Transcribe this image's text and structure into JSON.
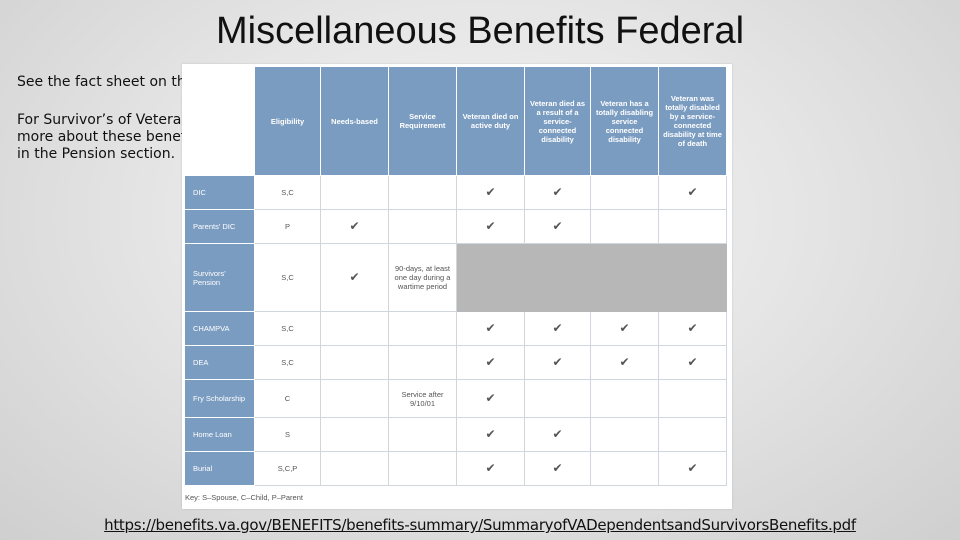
{
  "slide": {
    "title": "Miscellaneous Benefits Federal",
    "side_text_1": "See the fact sheet on the table.",
    "side_text_2_lines": [
      "For Survivor’s of Veterans",
      "more about these benefits",
      "in the Pension section."
    ],
    "url": "https://benefits.va.gov/BENEFITS/benefits-summary/SummaryofVADependentsandSurvivorsBenefits.pdf",
    "check_glyph": "✔"
  },
  "table": {
    "headers": [
      "",
      "Eligibility",
      "Needs-based",
      "Service Requirement",
      "Veteran died on active duty",
      "Veteran died as a result of a service-connected disability",
      "Veteran has a totally disabling service connected disability",
      "Veteran was totally disabled by a service-connected disability at time of death"
    ],
    "rows": [
      {
        "label": "DIC",
        "eligibility": "S,C",
        "needs": false,
        "service": "",
        "active": true,
        "result": true,
        "totally": false,
        "time": true,
        "grey": false
      },
      {
        "label": "Parents' DIC",
        "eligibility": "P",
        "needs": true,
        "service": "",
        "active": true,
        "result": true,
        "totally": false,
        "time": false,
        "grey": false
      },
      {
        "label": "Survivors' Pension",
        "eligibility": "S,C",
        "needs": true,
        "service": "90-days, at least one day during a wartime period",
        "active": false,
        "result": false,
        "totally": false,
        "time": false,
        "grey": true
      },
      {
        "label": "CHAMPVA",
        "eligibility": "S,C",
        "needs": false,
        "service": "",
        "active": true,
        "result": true,
        "totally": true,
        "time": true,
        "grey": false
      },
      {
        "label": "DEA",
        "eligibility": "S,C",
        "needs": false,
        "service": "",
        "active": true,
        "result": true,
        "totally": true,
        "time": true,
        "grey": false
      },
      {
        "label": "Fry Scholarship",
        "eligibility": "C",
        "needs": false,
        "service": "Service after 9/10/01",
        "active": true,
        "result": false,
        "totally": false,
        "time": false,
        "grey": false
      },
      {
        "label": "Home Loan",
        "eligibility": "S",
        "needs": false,
        "service": "",
        "active": true,
        "result": true,
        "totally": false,
        "time": false,
        "grey": false
      },
      {
        "label": "Burial",
        "eligibility": "S,C,P",
        "needs": false,
        "service": "",
        "active": true,
        "result": true,
        "totally": false,
        "time": true,
        "grey": false
      }
    ],
    "key": "Key: S–Spouse, C–Child, P–Parent"
  }
}
